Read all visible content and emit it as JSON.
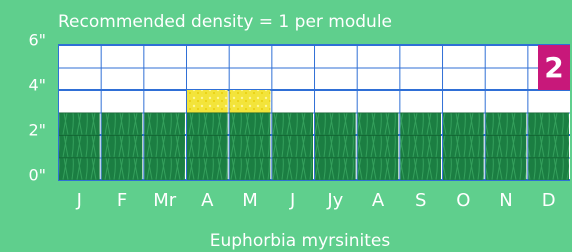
{
  "chart_data": {
    "type": "stacked-bar",
    "title": "Recommended density = 1 per module",
    "xlabel": "Euphorbia myrsinites",
    "badge": "2",
    "categories": [
      "J",
      "F",
      "Mr",
      "A",
      "M",
      "J",
      "Jy",
      "A",
      "S",
      "O",
      "N",
      "D"
    ],
    "series": [
      {
        "color": "#1b7e42",
        "values": [
          3,
          3,
          3,
          3,
          3,
          3,
          3,
          3,
          3,
          3,
          3,
          3
        ]
      },
      {
        "color": "#f3e43a",
        "values": [
          null,
          null,
          null,
          1,
          1,
          null,
          null,
          null,
          null,
          null,
          null,
          null
        ]
      }
    ],
    "ylim": [
      0,
      6
    ],
    "yticks": [
      {
        "value": 0,
        "label": "0\""
      },
      {
        "value": 2,
        "label": "2\""
      },
      {
        "value": 4,
        "label": "4\""
      },
      {
        "value": 6,
        "label": "6\""
      }
    ],
    "grid": true
  }
}
